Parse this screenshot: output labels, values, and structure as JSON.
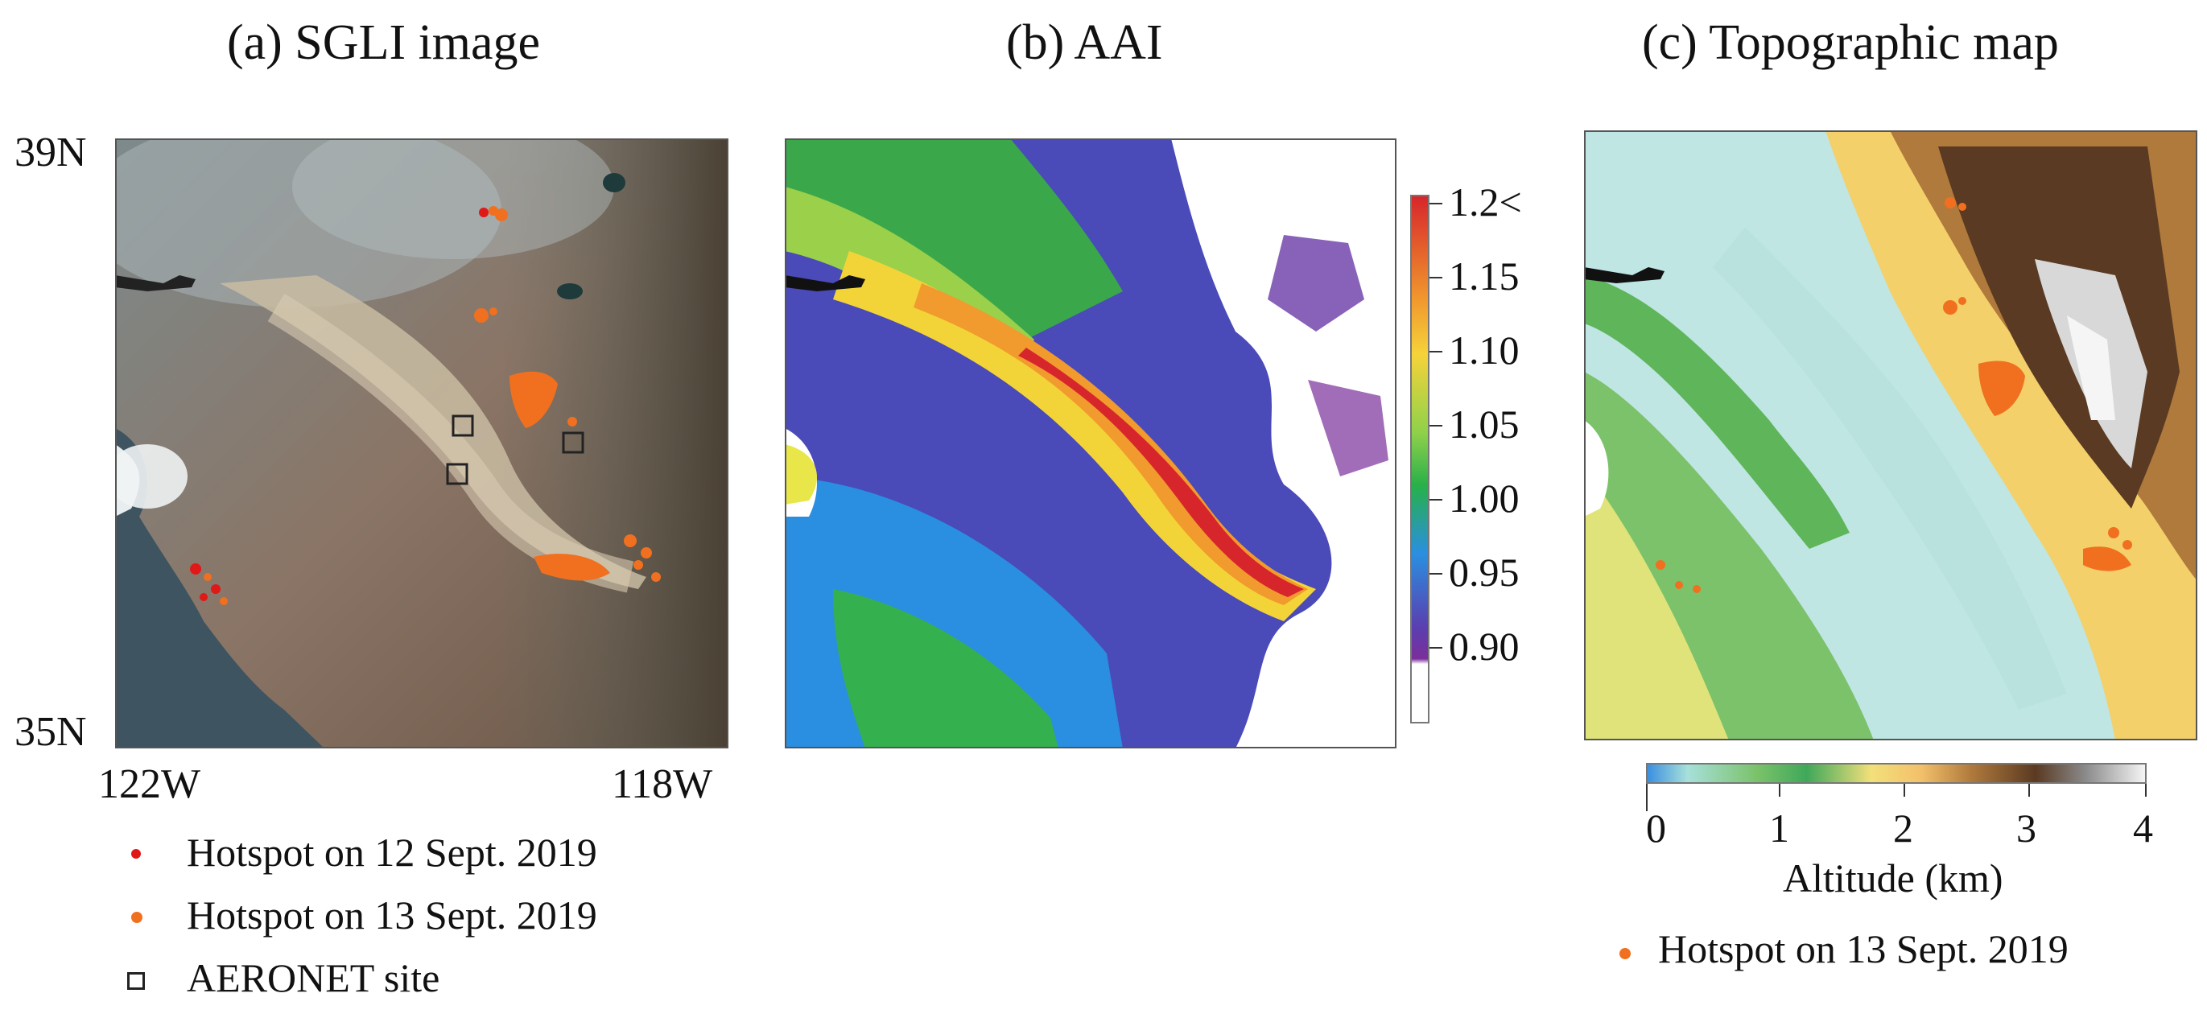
{
  "panels": {
    "a": {
      "title": "(a) SGLI image"
    },
    "b": {
      "title": "(b) AAI"
    },
    "c": {
      "title": "(c) Topographic map"
    }
  },
  "axes": {
    "lat_top": "39N",
    "lat_bottom": "35N",
    "lon_left": "122W",
    "lon_right": "118W"
  },
  "legend_a": {
    "hotspot_12": "Hotspot on 12 Sept. 2019",
    "hotspot_13": "Hotspot on 13 Sept. 2019",
    "aeronet": "AERONET site",
    "color_12": "#e01818",
    "color_13": "#f07020"
  },
  "aai_colorbar": {
    "ticks": [
      "1.2<",
      "1.15",
      "1.10",
      "1.05",
      "1.00",
      "0.95",
      "0.90"
    ],
    "colors": [
      "#d7262b",
      "#f5d33a",
      "#8fd14a",
      "#28b04a",
      "#2a8fe0",
      "#5a3fb0",
      "#7a2f9a"
    ]
  },
  "topo_colorbar": {
    "ticks": [
      "0",
      "1",
      "2",
      "3",
      "4"
    ],
    "label": "Altitude (km)"
  },
  "legend_c": {
    "hotspot_13": "Hotspot on 13 Sept. 2019"
  }
}
